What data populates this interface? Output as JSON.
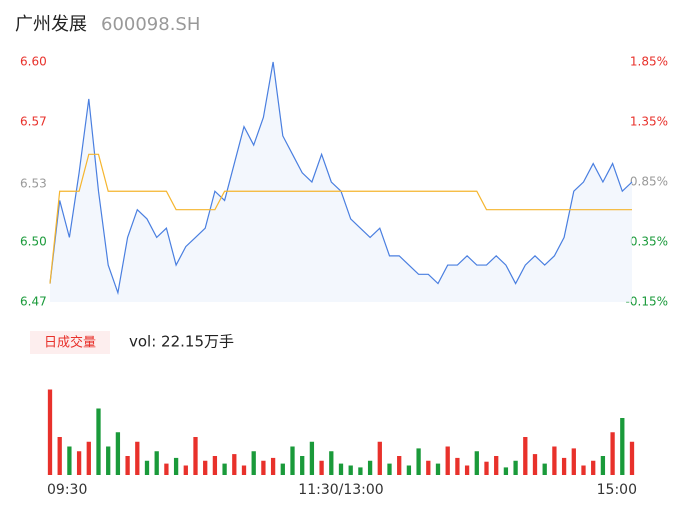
{
  "chart_data": {
    "type": "intraday",
    "title": "广州发展",
    "subtitle": "600098.SH",
    "x": [
      0,
      4,
      8,
      12,
      16,
      20,
      24,
      28,
      32,
      36,
      40,
      44,
      48,
      52,
      56,
      60,
      64,
      68,
      72,
      76,
      80,
      84,
      88,
      92,
      96,
      100,
      104,
      108,
      112,
      116,
      120,
      124,
      128,
      132,
      136,
      140,
      144,
      148,
      152,
      156,
      160,
      164,
      168,
      172,
      176,
      180,
      184,
      188,
      192,
      196,
      200,
      204,
      208,
      212,
      216,
      220,
      224,
      228,
      232,
      236,
      240
    ],
    "xlim": [
      0,
      240
    ],
    "xticks": [
      {
        "value": 0,
        "label": "09:30"
      },
      {
        "value": 120,
        "label": "11:30/13:00"
      },
      {
        "value": 240,
        "label": "15:00"
      }
    ],
    "series": [
      {
        "name": "price",
        "color": "#4a7fe0",
        "values": [
          6.48,
          6.525,
          6.505,
          6.54,
          6.58,
          6.53,
          6.49,
          6.475,
          6.505,
          6.52,
          6.515,
          6.505,
          6.51,
          6.49,
          6.5,
          6.505,
          6.51,
          6.53,
          6.525,
          6.545,
          6.565,
          6.555,
          6.57,
          6.6,
          6.56,
          6.55,
          6.54,
          6.535,
          6.55,
          6.535,
          6.53,
          6.515,
          6.51,
          6.505,
          6.51,
          6.495,
          6.495,
          6.49,
          6.485,
          6.485,
          6.48,
          6.49,
          6.49,
          6.495,
          6.49,
          6.49,
          6.495,
          6.49,
          6.48,
          6.49,
          6.495,
          6.49,
          6.495,
          6.505,
          6.53,
          6.535,
          6.545,
          6.535,
          6.545,
          6.53,
          6.535
        ]
      },
      {
        "name": "average",
        "color": "#f5b52e",
        "values": [
          6.48,
          6.53,
          6.53,
          6.53,
          6.55,
          6.55,
          6.53,
          6.53,
          6.53,
          6.53,
          6.53,
          6.53,
          6.53,
          6.52,
          6.52,
          6.52,
          6.52,
          6.52,
          6.53,
          6.53,
          6.53,
          6.53,
          6.53,
          6.53,
          6.53,
          6.53,
          6.53,
          6.53,
          6.53,
          6.53,
          6.53,
          6.53,
          6.53,
          6.53,
          6.53,
          6.53,
          6.53,
          6.53,
          6.53,
          6.53,
          6.53,
          6.53,
          6.53,
          6.53,
          6.53,
          6.52,
          6.52,
          6.52,
          6.52,
          6.52,
          6.52,
          6.52,
          6.52,
          6.52,
          6.52,
          6.52,
          6.52,
          6.52,
          6.52,
          6.52,
          6.52
        ]
      }
    ],
    "ylim": [
      6.47,
      6.6
    ],
    "yticks": [
      6.47,
      {
        "value": 6.5025,
        "label": "6.50"
      },
      {
        "value": 6.534,
        "label": "6.53"
      },
      {
        "value": 6.5675,
        "label": "6.57"
      },
      {
        "value": 6.6,
        "label": "6.60"
      }
    ],
    "y2lim": [
      -0.15,
      1.85
    ],
    "y2ticks": [
      {
        "value": -0.15,
        "label": "-0.15%"
      },
      {
        "value": 0.35,
        "label": "0.35%"
      },
      {
        "value": 0.85,
        "label": "0.85%"
      },
      {
        "value": 1.35,
        "label": "1.35%"
      },
      {
        "value": 1.85,
        "label": "1.85%"
      }
    ],
    "up_color": "#e8312b",
    "down_color": "#1a9a3a",
    "flat_color": "#999999",
    "volume": {
      "badge": "日成交量",
      "label": "vol: 22.15万手",
      "values": [
        90,
        40,
        30,
        25,
        35,
        70,
        30,
        45,
        20,
        35,
        15,
        25,
        12,
        18,
        10,
        40,
        15,
        20,
        12,
        22,
        10,
        25,
        15,
        18,
        12,
        30,
        20,
        35,
        15,
        25,
        12,
        10,
        8,
        15,
        35,
        12,
        20,
        10,
        28,
        15,
        12,
        30,
        18,
        10,
        25,
        14,
        20,
        8,
        15,
        40,
        22,
        12,
        30,
        18,
        28,
        10,
        15,
        20,
        45,
        60,
        35
      ],
      "ylim": [
        0,
        100
      ]
    }
  }
}
